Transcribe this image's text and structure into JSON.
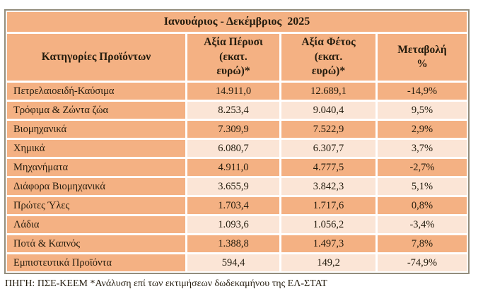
{
  "title": "Ιανουάριος - Δεκέμβριος  2025",
  "table": {
    "header": {
      "category": "Κατηγορίες Προϊόντων",
      "last_year": "Αξία Πέρυσι\n(εκατ.\nευρώ)*",
      "this_year": "Αξία Φέτος\n(εκατ.\nευρώ)*",
      "change": "Μεταβολή\n%"
    },
    "rows": [
      {
        "category": "Πετρελαιοειδή-Καύσιμα",
        "last_year": "14.911,0",
        "this_year": "12.689,1",
        "change": "-14,9%"
      },
      {
        "category": "Τρόφιμα & Ζώντα ζώα",
        "last_year": "8.253,4",
        "this_year": "9.040,4",
        "change": "9,5%"
      },
      {
        "category": "Βιομηχανικά",
        "last_year": "7.309,9",
        "this_year": "7.522,9",
        "change": "2,9%"
      },
      {
        "category": "Χημικά",
        "last_year": "6.080,7",
        "this_year": "6.307,7",
        "change": "3,7%"
      },
      {
        "category": "Μηχανήματα",
        "last_year": "4.911,0",
        "this_year": "4.777,5",
        "change": "-2,7%"
      },
      {
        "category": "Διάφορα Βιομηχανικά",
        "last_year": "3.655,9",
        "this_year": "3.842,3",
        "change": "5,1%"
      },
      {
        "category": "Πρώτες Ύλες",
        "last_year": "1.703,4",
        "this_year": "1.717,6",
        "change": "0,8%"
      },
      {
        "category": "Λάδια",
        "last_year": "1.093,6",
        "this_year": "1.056,2",
        "change": "-3,4%"
      },
      {
        "category": "Ποτά & Καπνός",
        "last_year": "1.388,8",
        "this_year": "1.497,3",
        "change": "7,8%"
      },
      {
        "category": "Εμπιστευτικά Προϊόντα",
        "last_year": "594,4",
        "this_year": "149,2",
        "change": "-74,9%"
      }
    ]
  },
  "footer": "ΠΗΓΗ: ΠΣΕ-ΚΕΕΜ *Ανάλυση επί των εκτιμήσεων δωδεκαμήνου της ΕΛ-ΣΤΑΤ",
  "colors": {
    "row_orange": "#F4B183",
    "row_light": "#FBE5D6",
    "grid_line": "#FFFFFF",
    "outer_border": "#938D7D",
    "text": "#241C0E"
  },
  "chart_data": {
    "type": "table",
    "title": "Ιανουάριος - Δεκέμβριος 2025",
    "columns": [
      "Κατηγορίες Προϊόντων",
      "Αξία Πέρυσι (εκατ. ευρώ)*",
      "Αξία Φέτος (εκατ. ευρώ)*",
      "Μεταβολή %"
    ],
    "categories": [
      "Πετρελαιοειδή-Καύσιμα",
      "Τρόφιμα & Ζώντα ζώα",
      "Βιομηχανικά",
      "Χημικά",
      "Μηχανήματα",
      "Διάφορα Βιομηχανικά",
      "Πρώτες Ύλες",
      "Λάδια",
      "Ποτά & Καπνός",
      "Εμπιστευτικά Προϊόντα"
    ],
    "series": [
      {
        "name": "Αξία Πέρυσι (εκατ. ευρώ)",
        "values": [
          14911.0,
          8253.4,
          7309.9,
          6080.7,
          4911.0,
          3655.9,
          1703.4,
          1093.6,
          1388.8,
          594.4
        ]
      },
      {
        "name": "Αξία Φέτος (εκατ. ευρώ)",
        "values": [
          12689.1,
          9040.4,
          7522.9,
          6307.7,
          4777.5,
          3842.3,
          1717.6,
          1056.2,
          1497.3,
          149.2
        ]
      },
      {
        "name": "Μεταβολή %",
        "values": [
          -14.9,
          9.5,
          2.9,
          3.7,
          -2.7,
          5.1,
          0.8,
          -3.4,
          7.8,
          -74.9
        ]
      }
    ],
    "footnote": "ΠΗΓΗ: ΠΣΕ-ΚΕΕΜ *Ανάλυση επί των εκτιμήσεων δωδεκαμήνου της ΕΛ-ΣΤΑΤ"
  }
}
